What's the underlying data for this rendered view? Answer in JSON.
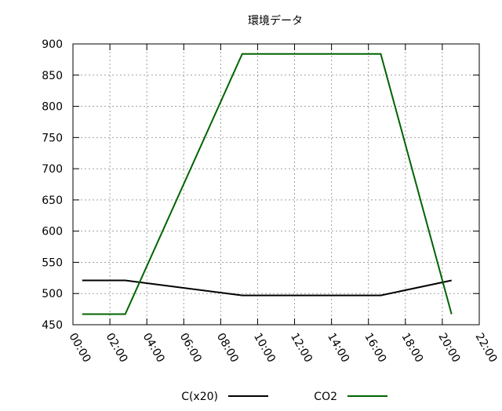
{
  "chart_data": {
    "type": "line",
    "title": "環境データ",
    "xlabel": "",
    "ylabel": "",
    "x_ticks": [
      "00:00",
      "02:00",
      "04:00",
      "06:00",
      "08:00",
      "10:00",
      "12:00",
      "14:00",
      "16:00",
      "18:00",
      "20:00",
      "22:00"
    ],
    "x_range": [
      "00:00",
      "22:00"
    ],
    "y_ticks": [
      450,
      500,
      550,
      600,
      650,
      700,
      750,
      800,
      850,
      900
    ],
    "ylim": [
      450,
      900
    ],
    "grid": true,
    "legend_placement": "bottom-center",
    "series": [
      {
        "name": "C(x20)",
        "color": "#000000",
        "points": [
          {
            "x": "00:30",
            "y": 521
          },
          {
            "x": "02:50",
            "y": 521
          },
          {
            "x": "09:10",
            "y": 497
          },
          {
            "x": "16:40",
            "y": 497
          },
          {
            "x": "20:30",
            "y": 521
          }
        ]
      },
      {
        "name": "CO2",
        "color": "#006400",
        "points": [
          {
            "x": "00:30",
            "y": 467
          },
          {
            "x": "02:50",
            "y": 467
          },
          {
            "x": "09:10",
            "y": 884
          },
          {
            "x": "16:40",
            "y": 884
          },
          {
            "x": "20:30",
            "y": 467
          }
        ]
      }
    ]
  }
}
